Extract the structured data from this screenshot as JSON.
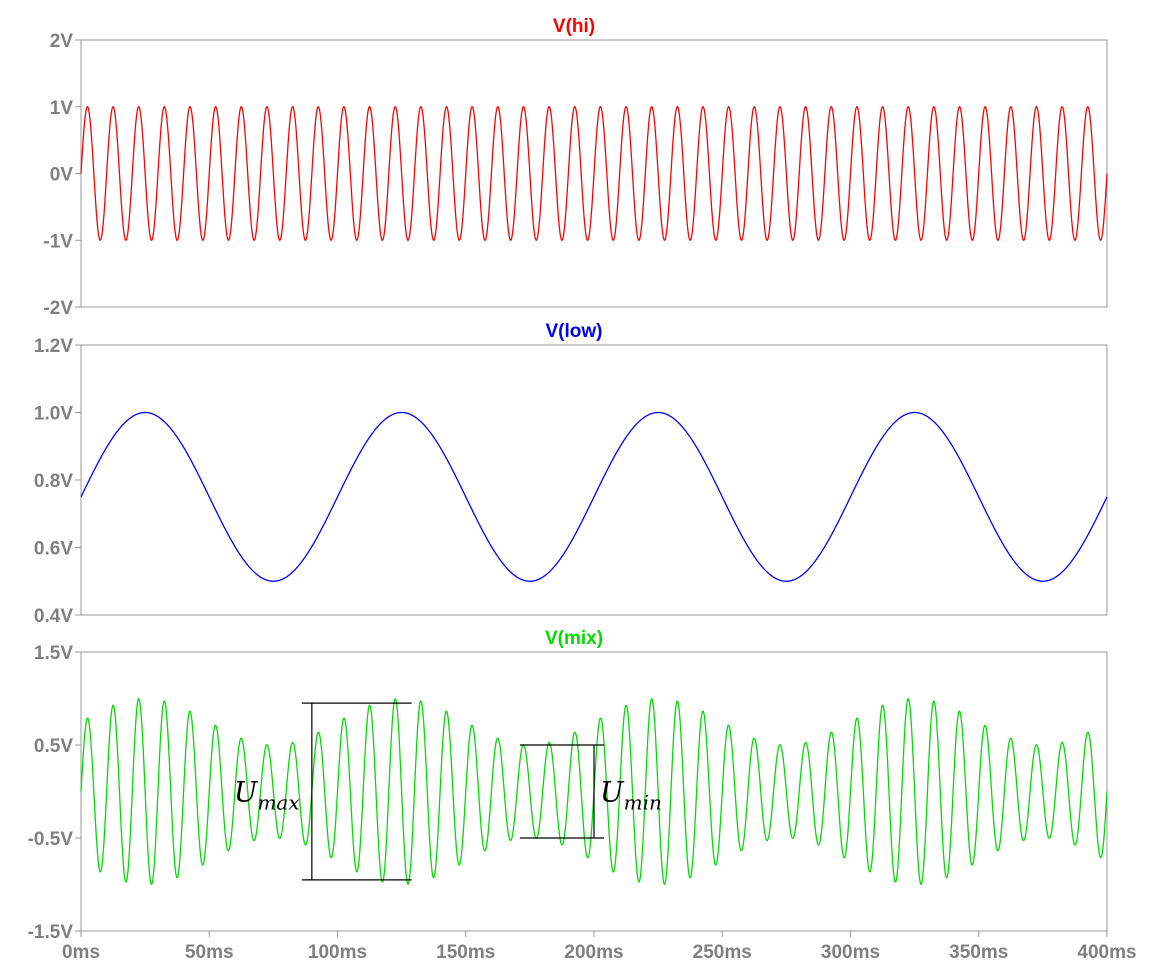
{
  "chart_data": [
    {
      "type": "line",
      "title": "V(hi)",
      "color": "#ff0000",
      "xlim": [
        0,
        400
      ],
      "ylim": [
        -2,
        2
      ],
      "x_unit": "ms",
      "y_ticks": [
        "2V",
        "1V",
        "0V",
        "-1V",
        "-2V"
      ],
      "y_tick_values": [
        2,
        1,
        0,
        -1,
        -2
      ],
      "series": [
        {
          "amplitude": 1.0,
          "offset": 0.0,
          "frequency_hz": 100,
          "phase_deg": 0
        }
      ],
      "grid": false
    },
    {
      "type": "line",
      "title": "V(low)",
      "color": "#0000ff",
      "xlim": [
        0,
        400
      ],
      "ylim": [
        0.4,
        1.2
      ],
      "x_unit": "ms",
      "y_ticks": [
        "1.2V",
        "1.0V",
        "0.8V",
        "0.6V",
        "0.4V"
      ],
      "y_tick_values": [
        1.2,
        1.0,
        0.8,
        0.6,
        0.4
      ],
      "series": [
        {
          "amplitude": 0.25,
          "offset": 0.75,
          "frequency_hz": 10,
          "phase_deg": 0
        }
      ],
      "grid": false
    },
    {
      "type": "line",
      "title": "V(mix)",
      "color": "#00dd00",
      "xlim": [
        0,
        400
      ],
      "ylim": [
        -1.5,
        1.5
      ],
      "x_unit": "ms",
      "y_ticks": [
        "1.5V",
        "0.5V",
        "-0.5V",
        "-1.5V"
      ],
      "y_tick_values": [
        1.5,
        0.5,
        -0.5,
        -1.5
      ],
      "x_ticks": [
        "0ms",
        "50ms",
        "100ms",
        "150ms",
        "200ms",
        "250ms",
        "300ms",
        "350ms",
        "400ms"
      ],
      "x_tick_values": [
        0,
        50,
        100,
        150,
        200,
        250,
        300,
        350,
        400
      ],
      "series": [
        {
          "carrier_frequency_hz": 100,
          "envelope_mean": 0.75,
          "envelope_amplitude": 0.25,
          "envelope_frequency_hz": 10
        }
      ],
      "annotations": [
        {
          "label": "U",
          "subscript": "max",
          "x_range_ms": [
            90,
            125
          ],
          "y_range": [
            -0.95,
            0.95
          ]
        },
        {
          "label": "U",
          "subscript": "min",
          "x_range_ms": [
            175,
            200
          ],
          "y_range": [
            -0.5,
            0.5
          ]
        }
      ],
      "grid": false
    }
  ]
}
